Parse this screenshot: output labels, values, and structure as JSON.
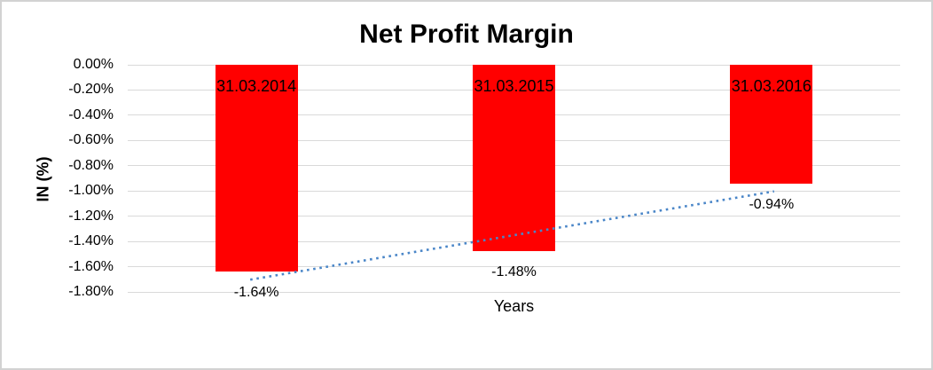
{
  "chart_data": {
    "type": "bar",
    "title": "Net Profit Margin",
    "categories": [
      "31.03.2014",
      "31.03.2015",
      "31.03.2016"
    ],
    "values": [
      -1.64,
      -1.48,
      -0.94
    ],
    "value_labels": [
      "-1.64%",
      "-1.48%",
      "-0.94%"
    ],
    "xlabel": "Years",
    "ylabel": "IN (%)",
    "ylim": [
      -1.8,
      0
    ],
    "ytick_step": 0.2,
    "yticks": [
      "0.00%",
      "-0.20%",
      "-0.40%",
      "-0.60%",
      "-0.80%",
      "-1.00%",
      "-1.20%",
      "-1.40%",
      "-1.60%",
      "-1.80%"
    ],
    "grid": true,
    "legend": false,
    "colors": {
      "bar": "#FF0000",
      "gridline": "#d9d9d9",
      "text": "#000000",
      "frame_border": "#d2d2d2",
      "trendline": "#4a86c8"
    },
    "trendline": {
      "type": "linear",
      "style": "dotted",
      "start_value": -1.703,
      "end_value": -1.003
    }
  }
}
